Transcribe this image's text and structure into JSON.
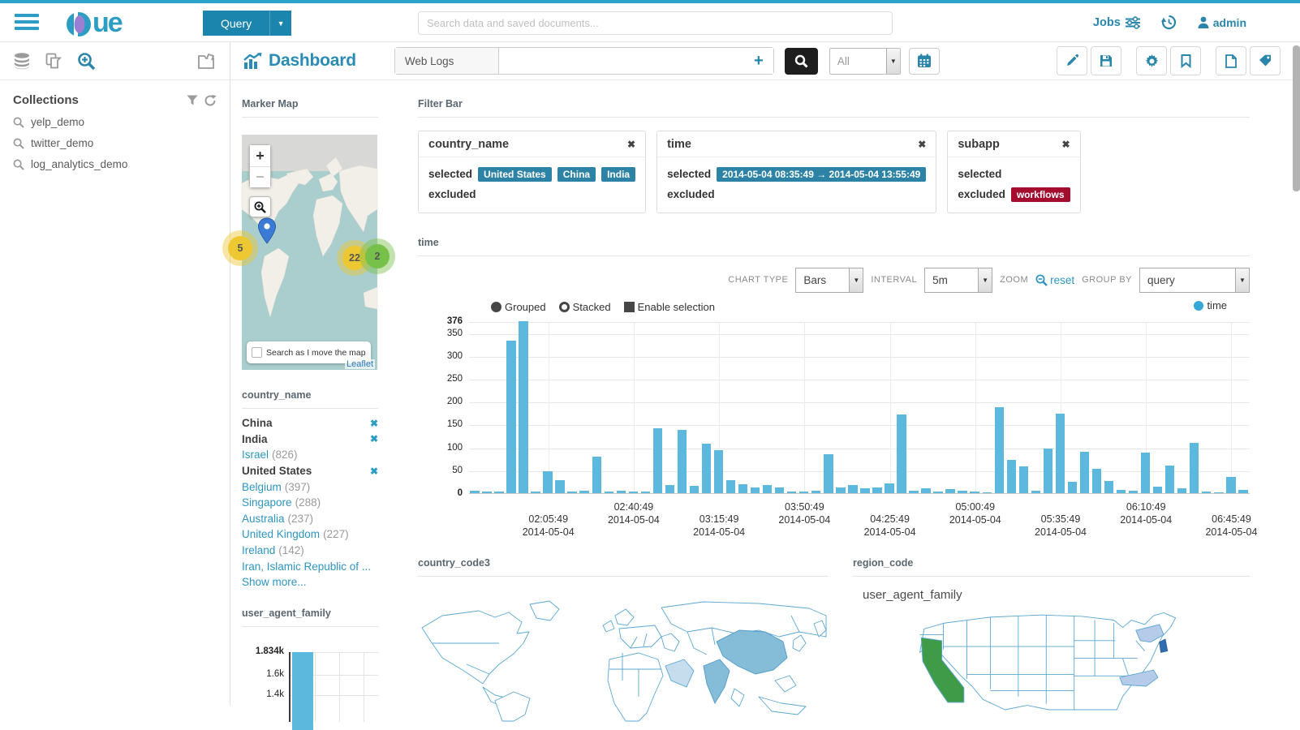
{
  "topnav": {
    "logo_text": "ue",
    "query_button": "Query",
    "search_placeholder": "Search data and saved documents...",
    "search_value": "",
    "jobs_label": "Jobs",
    "user_label": "admin"
  },
  "left_panel": {
    "collections_title": "Collections",
    "items": [
      {
        "label": "yelp_demo"
      },
      {
        "label": "twitter_demo"
      },
      {
        "label": "log_analytics_demo"
      }
    ]
  },
  "toolbar": {
    "title": "Dashboard",
    "index_label": "Web Logs",
    "search_value": "",
    "plus_label": "+",
    "range_value": "All"
  },
  "marker_map": {
    "title": "Marker Map",
    "zoom_in_label": "+",
    "zoom_out_label": "−",
    "clusters": [
      {
        "label": "5"
      },
      {
        "label": "22"
      },
      {
        "label": "2"
      }
    ],
    "search_checkbox_label": "Search as I move the map",
    "attribution": "Leaflet"
  },
  "filter_bar": {
    "title": "Filter Bar",
    "selected_label": "selected",
    "excluded_label": "excluded",
    "filters": [
      {
        "field": "country_name",
        "selected": [
          "United States",
          "China",
          "India"
        ],
        "excluded": []
      },
      {
        "field": "time",
        "selected": [
          "2014-05-04  08:35:49 → 2014-05-04  13:55:49"
        ],
        "excluded": []
      },
      {
        "field": "subapp",
        "selected": [],
        "excluded": [
          "workflows"
        ]
      }
    ]
  },
  "time_section": {
    "title": "time",
    "chart_type_label": "CHART TYPE",
    "chart_type_value": "Bars",
    "interval_label": "INTERVAL",
    "interval_value": "5m",
    "zoom_label": "ZOOM",
    "reset_label": "reset",
    "group_by_label": "GROUP BY",
    "group_by_value": "query",
    "legend": {
      "grouped": "Grouped",
      "stacked": "Stacked",
      "enable_selection": "Enable selection",
      "series": "time"
    }
  },
  "chart_data": [
    {
      "type": "bar",
      "title": "time",
      "series": [
        {
          "name": "time",
          "color": "#5cb9dd"
        }
      ],
      "values": [
        6,
        4,
        4,
        333,
        376,
        3,
        48,
        29,
        3,
        6,
        80,
        3,
        6,
        3,
        3,
        142,
        18,
        138,
        16,
        108,
        94,
        28,
        20,
        13,
        18,
        13,
        3,
        4,
        6,
        85,
        13,
        18,
        11,
        13,
        21,
        172,
        5,
        11,
        3,
        9,
        6,
        3,
        2,
        188,
        73,
        59,
        5,
        97,
        173,
        25,
        90,
        54,
        27,
        7,
        6,
        88,
        14,
        61,
        11,
        110,
        3,
        2,
        36,
        7
      ],
      "ylim": [
        0,
        376
      ],
      "yticks": [
        0,
        50,
        100,
        150,
        200,
        250,
        300,
        350,
        376
      ],
      "x_ticks": [
        {
          "time": "02:05:49",
          "date": "2014-05-04"
        },
        {
          "time": "02:40:49",
          "date": "2014-05-04"
        },
        {
          "time": "03:15:49",
          "date": "2014-05-04"
        },
        {
          "time": "03:50:49",
          "date": "2014-05-04"
        },
        {
          "time": "04:25:49",
          "date": "2014-05-04"
        },
        {
          "time": "05:00:49",
          "date": "2014-05-04"
        },
        {
          "time": "05:35:49",
          "date": "2014-05-04"
        },
        {
          "time": "06:10:49",
          "date": "2014-05-04"
        },
        {
          "time": "06:45:49",
          "date": "2014-05-04"
        }
      ],
      "grid": true,
      "legend_position": "top-right"
    },
    {
      "type": "bar",
      "title": "user_agent_family",
      "values": [
        1834
      ],
      "yticks": [
        {
          "label": "1.834k",
          "value": 1834
        },
        {
          "label": "1.6k",
          "value": 1600
        },
        {
          "label": "1.4k",
          "value": 1400
        }
      ],
      "bar_color": "#5cb9dd"
    }
  ],
  "country_name_facet": {
    "title": "country_name",
    "items": [
      {
        "label": "China",
        "selected": true
      },
      {
        "label": "India",
        "selected": true
      },
      {
        "label": "Israel",
        "count": "826"
      },
      {
        "label": "United States",
        "selected": true
      },
      {
        "label": "Belgium",
        "count": "397"
      },
      {
        "label": "Singapore",
        "count": "288"
      },
      {
        "label": "Australia",
        "count": "237"
      },
      {
        "label": "United Kingdom",
        "count": "227"
      },
      {
        "label": "Ireland",
        "count": "142"
      },
      {
        "label": "Iran, Islamic Republic of ..."
      }
    ],
    "show_more": "Show more..."
  },
  "user_agent_widget": {
    "title": "user_agent_family"
  },
  "country_code3_map": {
    "title": "country_code3",
    "type": "world-choropleth",
    "highlighted_dark": [
      "China",
      "India"
    ],
    "highlighted_light": [
      "Saudi Arabia"
    ]
  },
  "region_code_map": {
    "title": "region_code",
    "widget_label": "user_agent_family",
    "type": "us-states-choropleth",
    "highlights": [
      {
        "state": "California",
        "color": "#3f9b47"
      },
      {
        "state": "New York",
        "color": "#b6cbe9"
      },
      {
        "state": "New Jersey",
        "color": "#2f6db0"
      },
      {
        "state": "North Carolina",
        "color": "#b6cbe9"
      }
    ]
  },
  "colors": {
    "accent_blue": "#2a85ab",
    "logo_teal": "#2c9ec3",
    "chip_blue": "#2d83a6",
    "chip_red": "#a50d2f",
    "bar_blue": "#5cb9dd",
    "link_blue": "#2e95c0"
  }
}
